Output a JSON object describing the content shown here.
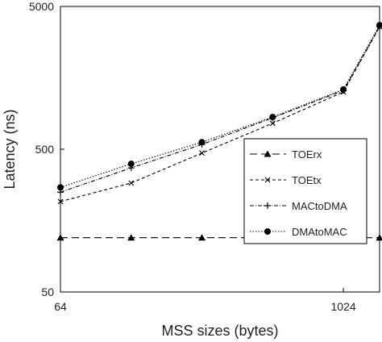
{
  "chart_data": {
    "type": "line",
    "xlabel": "MSS sizes (bytes)",
    "ylabel": "Latency (ns)",
    "x": [
      64,
      128,
      256,
      512,
      1024,
      1460
    ],
    "x_tick_labels": [
      "64",
      "1024"
    ],
    "y_tick_labels": [
      "50",
      "500",
      "5000"
    ],
    "y_scale": "log",
    "ylim": [
      50,
      5000
    ],
    "x_scale": "log",
    "xlim": [
      64,
      1460
    ],
    "grid": false,
    "legend_position": "right-center",
    "series": [
      {
        "name": "TOErx",
        "values": [
          120,
          120,
          120,
          120,
          120,
          120
        ],
        "marker": "triangle",
        "dash": "long-dash"
      },
      {
        "name": "TOEtx",
        "values": [
          215,
          290,
          470,
          760,
          1260,
          3600
        ],
        "marker": "x",
        "dash": "dash"
      },
      {
        "name": "MACtoDMA",
        "values": [
          250,
          370,
          540,
          830,
          1290,
          3600
        ],
        "marker": "plus",
        "dash": "dash-dot"
      },
      {
        "name": "DMAtoMAC",
        "values": [
          270,
          395,
          560,
          840,
          1310,
          3700
        ],
        "marker": "circle",
        "dash": "dot"
      }
    ]
  }
}
